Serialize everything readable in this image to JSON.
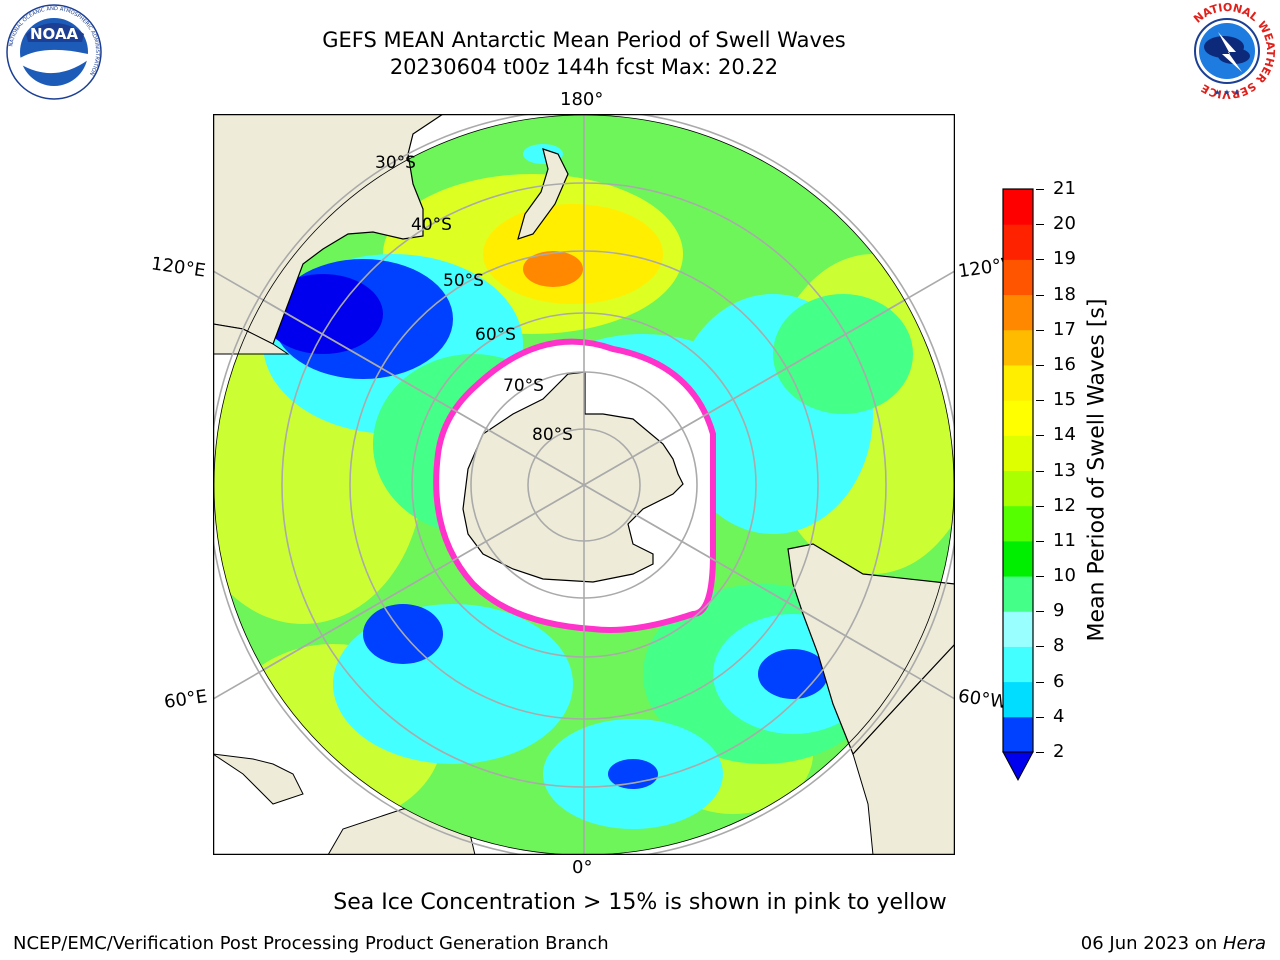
{
  "header": {
    "title_line1": "GEFS MEAN Antarctic Mean Period of Swell Waves",
    "title_line2": "20230604 t00z 144h fcst   Max: 20.22"
  },
  "logos": {
    "left": {
      "name": "NOAA",
      "ring_text": "NATIONAL OCEANIC AND ATMOSPHERIC ADMINISTRATION",
      "bottom_text": "U.S. DEPARTMENT OF COMMERCE"
    },
    "right": {
      "name": "NATIONAL WEATHER SERVICE"
    }
  },
  "map": {
    "projection": "south polar stereographic",
    "longitude_labels": {
      "top": "180°",
      "bottom": "0°",
      "upper_left": "120°E",
      "upper_right": "120°W",
      "lower_left": "60°E",
      "lower_right": "60°W"
    },
    "latitude_labels": [
      "30°S",
      "40°S",
      "50°S",
      "60°S",
      "70°S",
      "80°S"
    ],
    "colors": {
      "land": "#eeecd9",
      "ice_free_sea_white": "#ffffff",
      "sea_ice_edge": "#ff33cc"
    }
  },
  "colorbar": {
    "label": "Mean Period of Swell Waves [s]",
    "ticks": [
      "2",
      "4",
      "6",
      "8",
      "9",
      "10",
      "11",
      "12",
      "13",
      "14",
      "15",
      "16",
      "17",
      "18",
      "19",
      "20",
      "21"
    ],
    "colors": [
      "#0040ff",
      "#00ddff",
      "#44ffff",
      "#99ffff",
      "#44ff88",
      "#00ee00",
      "#55ff00",
      "#aaff00",
      "#ddff00",
      "#ffff00",
      "#ffee00",
      "#ffbb00",
      "#ff8800",
      "#ff5500",
      "#ff2200",
      "#ff0000"
    ],
    "under_color": "#0000ee"
  },
  "note": "Sea Ice Concentration > 15% is shown in pink to yellow",
  "footer": {
    "left": "NCEP/EMC/Verification Post Processing Product Generation Branch",
    "right_date": "06 Jun 2023 on ",
    "right_host": "Hera"
  }
}
